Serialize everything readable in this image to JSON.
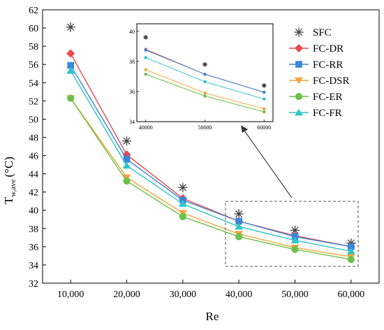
{
  "chart_data": {
    "type": "line",
    "xlabel": "Re",
    "ylabel_main": "T",
    "ylabel_sub": "w,ave",
    "ylabel_unit": "(°C)",
    "x": [
      10000,
      20000,
      30000,
      40000,
      50000,
      60000
    ],
    "x_tick_labels": [
      "10,000",
      "20,000",
      "30,000",
      "40,000",
      "50,000",
      "60,000"
    ],
    "xlim": [
      5000,
      65000
    ],
    "ylim": [
      32,
      62
    ],
    "y_ticks": [
      32,
      34,
      36,
      38,
      40,
      42,
      44,
      46,
      48,
      50,
      52,
      54,
      56,
      58,
      60,
      62
    ],
    "grid": false,
    "legend_position": "top-right",
    "series": [
      {
        "name": "SFC",
        "marker": "asterisk",
        "color": "#404040",
        "line": false,
        "values": [
          60.1,
          47.6,
          42.5,
          39.6,
          37.8,
          36.4
        ]
      },
      {
        "name": "FC-DR",
        "marker": "diamond",
        "color": "#e8494b",
        "line": true,
        "values": [
          57.2,
          46.1,
          41.3,
          38.8,
          37.2,
          36.0
        ]
      },
      {
        "name": "FC-RR",
        "marker": "square",
        "color": "#3b86d9",
        "line": true,
        "values": [
          55.9,
          45.6,
          41.1,
          38.8,
          37.1,
          36.0
        ]
      },
      {
        "name": "FC-DSR",
        "marker": "triangle-down",
        "color": "#f5a33a",
        "line": true,
        "values": [
          52.3,
          43.6,
          39.7,
          37.4,
          35.9,
          34.9
        ]
      },
      {
        "name": "FC-ER",
        "marker": "circle",
        "color": "#6cc04a",
        "line": true,
        "values": [
          52.3,
          43.2,
          39.3,
          37.1,
          35.7,
          34.6
        ]
      },
      {
        "name": "FC-FR",
        "marker": "triangle-up",
        "color": "#2ec4c8",
        "line": true,
        "values": [
          55.3,
          44.9,
          40.7,
          38.2,
          36.7,
          35.5
        ]
      }
    ],
    "inset": {
      "x": [
        40000,
        50000,
        60000
      ],
      "x_tick_labels": [
        "40000",
        "50000",
        "60000"
      ],
      "xlim": [
        38500,
        61500
      ],
      "ylim": [
        34,
        40.5
      ],
      "y_ticks": [
        34,
        36,
        38,
        40
      ],
      "series": [
        {
          "name": "SFC",
          "values": [
            39.6,
            37.8,
            36.4
          ]
        },
        {
          "name": "FC-DR",
          "values": [
            38.8,
            37.15,
            35.95
          ]
        },
        {
          "name": "FC-RR",
          "values": [
            38.75,
            37.15,
            35.95
          ]
        },
        {
          "name": "FC-DSR",
          "values": [
            37.45,
            35.9,
            34.85
          ]
        },
        {
          "name": "FC-ER",
          "values": [
            37.15,
            35.7,
            34.65
          ]
        },
        {
          "name": "FC-FR",
          "values": [
            38.25,
            36.65,
            35.5
          ]
        }
      ]
    }
  }
}
